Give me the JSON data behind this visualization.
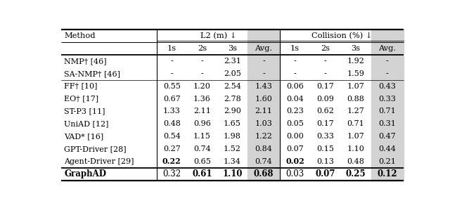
{
  "header_top_left": "Method",
  "header_l2": "L2 (m) ↓",
  "header_collision": "Collision (%) ↓",
  "header_sub": [
    "1s",
    "2s",
    "3s",
    "Avg.",
    "1s",
    "2s",
    "3s",
    "Avg."
  ],
  "rows": [
    [
      "NMP† [46]",
      "-",
      "-",
      "2.31",
      "-",
      "-",
      "-",
      "1.92",
      "-"
    ],
    [
      "SA-NMP† [46]",
      "-",
      "-",
      "2.05",
      "-",
      "-",
      "-",
      "1.59",
      "-"
    ],
    [
      "FF† [10]",
      "0.55",
      "1.20",
      "2.54",
      "1.43",
      "0.06",
      "0.17",
      "1.07",
      "0.43"
    ],
    [
      "EO† [17]",
      "0.67",
      "1.36",
      "2.78",
      "1.60",
      "0.04",
      "0.09",
      "0.88",
      "0.33"
    ],
    [
      "ST-P3 [11]",
      "1.33",
      "2.11",
      "2.90",
      "2.11",
      "0.23",
      "0.62",
      "1.27",
      "0.71"
    ],
    [
      "UniAD [12]",
      "0.48",
      "0.96",
      "1.65",
      "1.03",
      "0.05",
      "0.17",
      "0.71",
      "0.31"
    ],
    [
      "VAD* [16]",
      "0.54",
      "1.15",
      "1.98",
      "1.22",
      "0.00",
      "0.33",
      "1.07",
      "0.47"
    ],
    [
      "GPT-Driver [28]",
      "0.27",
      "0.74",
      "1.52",
      "0.84",
      "0.07",
      "0.15",
      "1.10",
      "0.44"
    ],
    [
      "Agent-Driver [29]",
      "0.22",
      "0.65",
      "1.34",
      "0.74",
      "0.02",
      "0.13",
      "0.48",
      "0.21"
    ]
  ],
  "graphad_row": [
    "GraphAD",
    "0.32",
    "0.61",
    "1.10",
    "0.68",
    "0.03",
    "0.07",
    "0.25",
    "0.12"
  ],
  "bold_in_rows": {
    "8": [
      1,
      5
    ],
    "graphad": [
      0,
      2,
      3,
      4,
      6,
      7,
      8
    ]
  },
  "avg_col_indices": [
    4,
    8
  ],
  "avg_bg_color": "#d3d3d3",
  "bg_color": "#ffffff",
  "n_separator_after_row": 2
}
